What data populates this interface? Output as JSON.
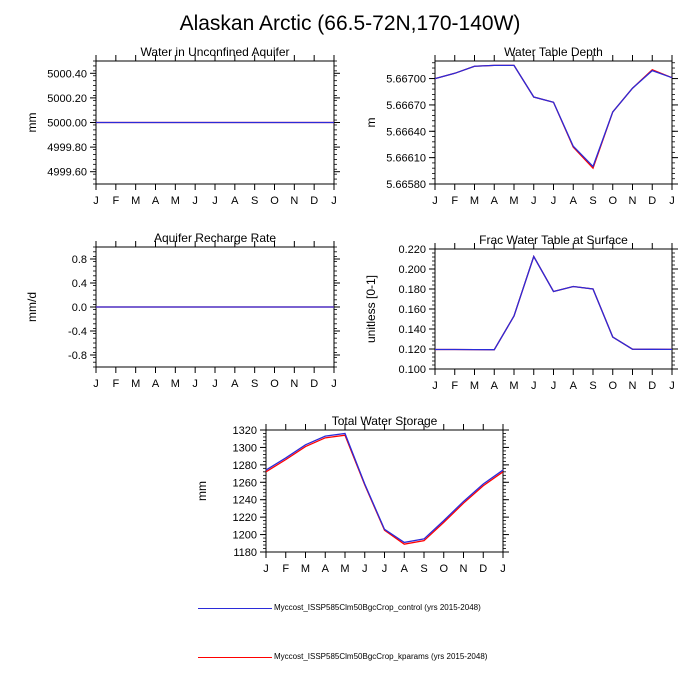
{
  "figure_title": "Alaskan Arctic (66.5-72N,170-140W)",
  "colors": {
    "control": "#2b2bd9",
    "kparams": "#ff0000",
    "axis": "#000000"
  },
  "legend": [
    {
      "label": "Myccost_ISSP585Clm50BgcCrop_control (yrs 2015-2048)",
      "color_key": "control"
    },
    {
      "label": "Myccost_ISSP585Clm50BgcCrop_kparams (yrs 2015-2048)",
      "color_key": "kparams"
    }
  ],
  "chart_data": [
    {
      "type": "line",
      "title": "Water in Unconfined Aquifer",
      "ylabel": "mm",
      "xlabel": "",
      "categories": [
        "J",
        "F",
        "M",
        "A",
        "M",
        "J",
        "J",
        "A",
        "S",
        "O",
        "N",
        "D",
        "J"
      ],
      "ylim": [
        4999.5,
        5000.5
      ],
      "yticks": [
        4999.6,
        4999.8,
        5000.0,
        5000.2,
        5000.4
      ],
      "ytick_labels": [
        "4999.60",
        "4999.80",
        "5000.00",
        "5000.20",
        "5000.40"
      ],
      "series": [
        {
          "name": "Myccost_ISSP585Clm50BgcCrop_kparams (yrs 2015-2048)",
          "color_key": "kparams",
          "values": [
            5000,
            5000,
            5000,
            5000,
            5000,
            5000,
            5000,
            5000,
            5000,
            5000,
            5000,
            5000,
            5000
          ]
        },
        {
          "name": "Myccost_ISSP585Clm50BgcCrop_control (yrs 2015-2048)",
          "color_key": "control",
          "values": [
            5000,
            5000,
            5000,
            5000,
            5000,
            5000,
            5000,
            5000,
            5000,
            5000,
            5000,
            5000,
            5000
          ]
        }
      ]
    },
    {
      "type": "line",
      "title": "Water Table Depth",
      "ylabel": "m",
      "xlabel": "",
      "categories": [
        "J",
        "F",
        "M",
        "A",
        "M",
        "J",
        "J",
        "A",
        "S",
        "O",
        "N",
        "D",
        "J"
      ],
      "ylim": [
        5.6658,
        5.6672
      ],
      "yticks": [
        5.6658,
        5.6661,
        5.6664,
        5.6667,
        5.667
      ],
      "ytick_labels": [
        "5.66580",
        "5.66610",
        "5.66640",
        "5.66670",
        "5.66700"
      ],
      "series": [
        {
          "name": "Myccost_ISSP585Clm50BgcCrop_kparams (yrs 2015-2048)",
          "color_key": "kparams",
          "values": [
            5.667,
            5.66706,
            5.66714,
            5.66715,
            5.66715,
            5.66679,
            5.66673,
            5.66622,
            5.66598,
            5.66662,
            5.66689,
            5.6671,
            5.66701
          ]
        },
        {
          "name": "Myccost_ISSP585Clm50BgcCrop_control (yrs 2015-2048)",
          "color_key": "control",
          "values": [
            5.667,
            5.66706,
            5.66714,
            5.66715,
            5.66715,
            5.66679,
            5.66673,
            5.66623,
            5.666,
            5.66662,
            5.66689,
            5.66709,
            5.66701
          ]
        }
      ]
    },
    {
      "type": "line",
      "title": "Aquifer Recharge Rate",
      "ylabel": "mm/d",
      "xlabel": "",
      "categories": [
        "J",
        "F",
        "M",
        "A",
        "M",
        "J",
        "J",
        "A",
        "S",
        "O",
        "N",
        "D",
        "J"
      ],
      "ylim": [
        -1.0,
        1.0
      ],
      "yticks": [
        -0.8,
        -0.4,
        0.0,
        0.4,
        0.8
      ],
      "ytick_labels": [
        "-0.8",
        "-0.4",
        "0.0",
        "0.4",
        "0.8"
      ],
      "series": [
        {
          "name": "Myccost_ISSP585Clm50BgcCrop_kparams (yrs 2015-2048)",
          "color_key": "kparams",
          "values": [
            0,
            0,
            0,
            0,
            0,
            0,
            0,
            0,
            0,
            0,
            0,
            0,
            0
          ]
        },
        {
          "name": "Myccost_ISSP585Clm50BgcCrop_control (yrs 2015-2048)",
          "color_key": "control",
          "values": [
            0,
            0,
            0,
            0,
            0,
            0,
            0,
            0,
            0,
            0,
            0,
            0,
            0
          ]
        }
      ]
    },
    {
      "type": "line",
      "title": "Frac Water Table at Surface",
      "ylabel": "unitless [0-1]",
      "xlabel": "",
      "categories": [
        "J",
        "F",
        "M",
        "A",
        "M",
        "J",
        "J",
        "A",
        "S",
        "O",
        "N",
        "D",
        "J"
      ],
      "ylim": [
        0.1,
        0.22
      ],
      "yticks": [
        0.1,
        0.12,
        0.14,
        0.16,
        0.18,
        0.2,
        0.22
      ],
      "ytick_labels": [
        "0.100",
        "0.120",
        "0.140",
        "0.160",
        "0.180",
        "0.200",
        "0.220"
      ],
      "series": [
        {
          "name": "Myccost_ISSP585Clm50BgcCrop_kparams (yrs 2015-2048)",
          "color_key": "kparams",
          "values": [
            0.1195,
            0.1195,
            0.1194,
            0.1193,
            0.153,
            0.2125,
            0.1775,
            0.1825,
            0.18,
            0.132,
            0.1198,
            0.1197,
            0.1196
          ]
        },
        {
          "name": "Myccost_ISSP585Clm50BgcCrop_control (yrs 2015-2048)",
          "color_key": "control",
          "values": [
            0.1195,
            0.1195,
            0.1194,
            0.1193,
            0.153,
            0.2125,
            0.1775,
            0.1825,
            0.18,
            0.132,
            0.1198,
            0.1197,
            0.1196
          ]
        }
      ]
    },
    {
      "type": "line",
      "title": "Total Water Storage",
      "ylabel": "mm",
      "xlabel": "",
      "categories": [
        "J",
        "F",
        "M",
        "A",
        "M",
        "J",
        "J",
        "A",
        "S",
        "O",
        "N",
        "D",
        "J"
      ],
      "ylim": [
        1180,
        1320
      ],
      "yticks": [
        1180,
        1200,
        1220,
        1240,
        1260,
        1280,
        1300,
        1320
      ],
      "ytick_labels": [
        "1180",
        "1200",
        "1220",
        "1240",
        "1260",
        "1280",
        "1300",
        "1320"
      ],
      "series": [
        {
          "name": "Myccost_ISSP585Clm50BgcCrop_kparams (yrs 2015-2048)",
          "color_key": "kparams",
          "values": [
            1272,
            1286,
            1301,
            1311,
            1314,
            1257,
            1205,
            1189,
            1193,
            1214,
            1236,
            1256,
            1272
          ]
        },
        {
          "name": "Myccost_ISSP585Clm50BgcCrop_control (yrs 2015-2048)",
          "color_key": "control",
          "values": [
            1274,
            1288,
            1303,
            1313,
            1316,
            1258,
            1206,
            1191,
            1195,
            1216,
            1238,
            1258,
            1274
          ]
        }
      ]
    }
  ]
}
